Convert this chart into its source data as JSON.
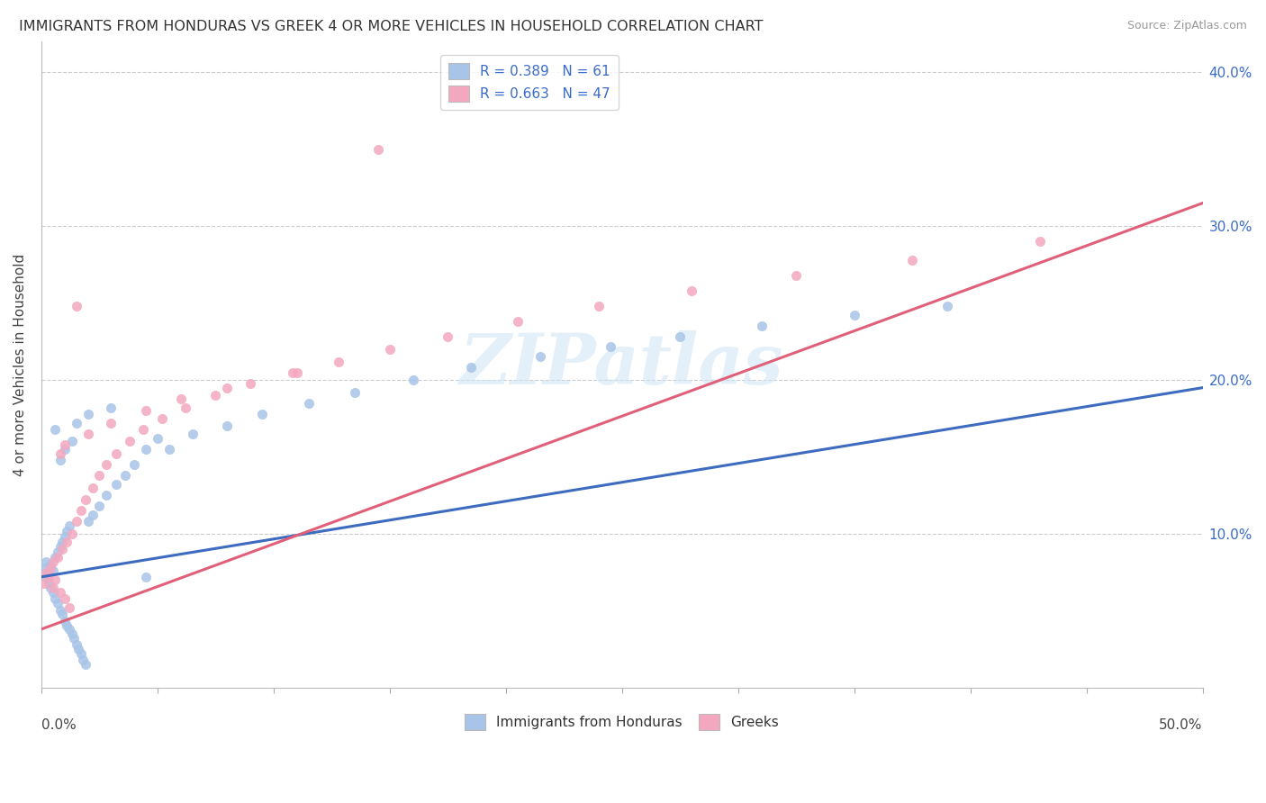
{
  "title": "IMMIGRANTS FROM HONDURAS VS GREEK 4 OR MORE VEHICLES IN HOUSEHOLD CORRELATION CHART",
  "source": "Source: ZipAtlas.com",
  "ylabel_label": "4 or more Vehicles in Household",
  "xmin": 0.0,
  "xmax": 0.5,
  "ymin": 0.0,
  "ymax": 0.42,
  "yticks": [
    0.0,
    0.1,
    0.2,
    0.3,
    0.4
  ],
  "ytick_labels": [
    "",
    "10.0%",
    "20.0%",
    "30.0%",
    "40.0%"
  ],
  "watermark": "ZIPatlas",
  "blue_color": "#a8c4e8",
  "pink_color": "#f4a8bf",
  "blue_line_color": "#3c6bbf",
  "pink_line_color": "#e0607a",
  "legend_blue_label": "R = 0.389   N = 61",
  "legend_pink_label": "R = 0.663   N = 47",
  "legend_bottom_blue": "Immigrants from Honduras",
  "legend_bottom_pink": "Greeks",
  "blue_x": [
    0.001,
    0.002,
    0.002,
    0.003,
    0.003,
    0.004,
    0.004,
    0.005,
    0.005,
    0.006,
    0.006,
    0.007,
    0.007,
    0.008,
    0.008,
    0.009,
    0.009,
    0.01,
    0.01,
    0.011,
    0.011,
    0.012,
    0.012,
    0.013,
    0.014,
    0.015,
    0.016,
    0.017,
    0.018,
    0.019,
    0.02,
    0.022,
    0.025,
    0.028,
    0.032,
    0.036,
    0.04,
    0.045,
    0.05,
    0.055,
    0.065,
    0.08,
    0.095,
    0.115,
    0.135,
    0.16,
    0.185,
    0.215,
    0.245,
    0.275,
    0.31,
    0.35,
    0.39,
    0.01,
    0.013,
    0.008,
    0.006,
    0.015,
    0.02,
    0.03,
    0.045
  ],
  "blue_y": [
    0.078,
    0.082,
    0.072,
    0.068,
    0.075,
    0.065,
    0.08,
    0.062,
    0.076,
    0.058,
    0.085,
    0.055,
    0.088,
    0.05,
    0.092,
    0.048,
    0.095,
    0.043,
    0.098,
    0.04,
    0.102,
    0.038,
    0.105,
    0.035,
    0.032,
    0.028,
    0.025,
    0.022,
    0.018,
    0.015,
    0.108,
    0.112,
    0.118,
    0.125,
    0.132,
    0.138,
    0.145,
    0.155,
    0.162,
    0.155,
    0.165,
    0.17,
    0.178,
    0.185,
    0.192,
    0.2,
    0.208,
    0.215,
    0.222,
    0.228,
    0.235,
    0.242,
    0.248,
    0.155,
    0.16,
    0.148,
    0.168,
    0.172,
    0.178,
    0.182,
    0.072
  ],
  "pink_x": [
    0.001,
    0.002,
    0.003,
    0.004,
    0.005,
    0.005,
    0.006,
    0.007,
    0.008,
    0.009,
    0.01,
    0.011,
    0.012,
    0.013,
    0.015,
    0.017,
    0.019,
    0.022,
    0.025,
    0.028,
    0.032,
    0.038,
    0.044,
    0.052,
    0.062,
    0.075,
    0.09,
    0.108,
    0.128,
    0.15,
    0.175,
    0.205,
    0.24,
    0.28,
    0.325,
    0.375,
    0.43,
    0.015,
    0.008,
    0.01,
    0.02,
    0.03,
    0.045,
    0.06,
    0.08,
    0.11,
    0.145
  ],
  "pink_y": [
    0.068,
    0.075,
    0.072,
    0.078,
    0.065,
    0.082,
    0.07,
    0.085,
    0.062,
    0.09,
    0.058,
    0.095,
    0.052,
    0.1,
    0.108,
    0.115,
    0.122,
    0.13,
    0.138,
    0.145,
    0.152,
    0.16,
    0.168,
    0.175,
    0.182,
    0.19,
    0.198,
    0.205,
    0.212,
    0.22,
    0.228,
    0.238,
    0.248,
    0.258,
    0.268,
    0.278,
    0.29,
    0.248,
    0.152,
    0.158,
    0.165,
    0.172,
    0.18,
    0.188,
    0.195,
    0.205,
    0.35
  ],
  "blue_trend_x0": 0.0,
  "blue_trend_x1": 0.5,
  "blue_trend_y0": 0.072,
  "blue_trend_y1": 0.195,
  "pink_trend_x0": 0.0,
  "pink_trend_x1": 0.5,
  "pink_trend_y0": 0.038,
  "pink_trend_y1": 0.315
}
